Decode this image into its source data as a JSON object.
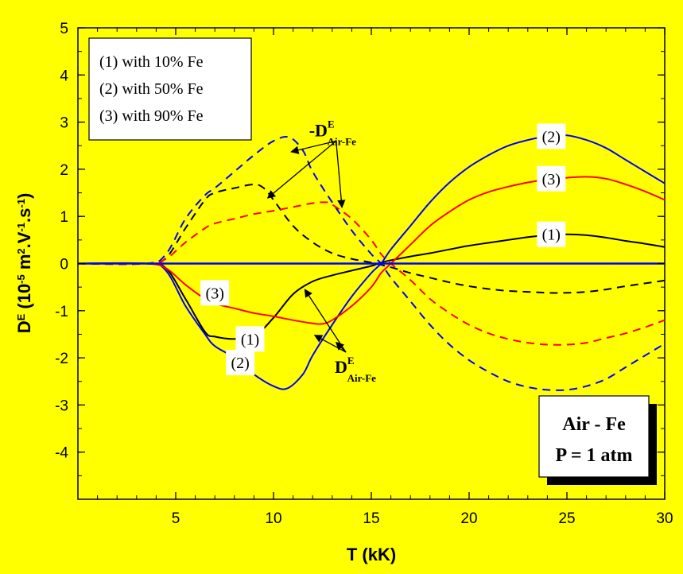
{
  "chart_data": {
    "type": "line",
    "xlabel": "T (kK)",
    "ylabel": {
      "main": "D",
      "sup": "E",
      "unit_open": " (10",
      "unit_exp": "-5",
      "unit_m": " m",
      "unit_m_exp": "2",
      "unit_v": ".V",
      "unit_v_exp": "-1",
      "unit_s": ".s",
      "unit_s_exp": "-1",
      "unit_close": ")"
    },
    "xlim": [
      0,
      30
    ],
    "ylim": [
      -5,
      5
    ],
    "xticks": [
      5,
      10,
      15,
      20,
      25,
      30
    ],
    "yticks": [
      -4,
      -3,
      -2,
      -1,
      0,
      1,
      2,
      3,
      4,
      5
    ],
    "legend": [
      "(1) with 10% Fe",
      "(2) with 50% Fe",
      "(3) with 90% Fe"
    ],
    "legend_position": "top-left",
    "colors": {
      "c1": "#000000",
      "c2": "#0000ff",
      "c3": "#ff0000",
      "background": "#ffff00"
    },
    "series": [
      {
        "curve": "(1)",
        "style": "solid",
        "color": "#000000",
        "x": [
          0,
          3.5,
          4.5,
          5.5,
          6.5,
          7,
          8,
          9,
          10,
          11,
          12,
          13,
          14,
          15,
          15.5,
          16,
          17,
          18,
          19,
          20,
          21,
          22,
          23,
          24,
          25,
          26,
          27,
          28,
          29,
          30
        ],
        "y": [
          0,
          0,
          -0.1,
          -0.75,
          -1.45,
          -1.55,
          -1.6,
          -1.55,
          -1.15,
          -0.65,
          -0.38,
          -0.25,
          -0.15,
          -0.05,
          0.02,
          0.07,
          0.15,
          0.22,
          0.3,
          0.38,
          0.44,
          0.5,
          0.56,
          0.6,
          0.62,
          0.6,
          0.55,
          0.48,
          0.42,
          0.35
        ]
      },
      {
        "curve": "(2)",
        "style": "solid",
        "color": "#0000ff",
        "x": [
          0,
          3.5,
          4.5,
          5.5,
          6.5,
          7,
          8,
          9,
          10,
          10.7,
          11.5,
          12,
          13,
          14,
          15,
          15.5,
          16,
          17,
          18,
          19,
          20,
          21,
          22,
          23,
          24,
          25,
          26,
          27,
          28,
          29,
          30
        ],
        "y": [
          0,
          0,
          -0.15,
          -0.9,
          -1.5,
          -1.75,
          -2.0,
          -2.35,
          -2.6,
          -2.65,
          -2.35,
          -1.95,
          -1.3,
          -0.7,
          -0.2,
          0,
          0.3,
          0.8,
          1.3,
          1.72,
          2.05,
          2.3,
          2.5,
          2.62,
          2.7,
          2.72,
          2.62,
          2.45,
          2.2,
          1.95,
          1.7
        ]
      },
      {
        "curve": "(3)",
        "style": "solid",
        "color": "#ff0000",
        "x": [
          0,
          3.5,
          4.5,
          5.5,
          6.5,
          7,
          8,
          9,
          10,
          11,
          12,
          12.5,
          13,
          14,
          15,
          15.5,
          16,
          17,
          18,
          19,
          20,
          21,
          22,
          23,
          24,
          25,
          26,
          27,
          28,
          29,
          30
        ],
        "y": [
          0,
          0,
          -0.1,
          -0.45,
          -0.75,
          -0.85,
          -0.95,
          -1.05,
          -1.12,
          -1.2,
          -1.27,
          -1.28,
          -1.2,
          -0.9,
          -0.5,
          -0.2,
          0,
          0.4,
          0.8,
          1.1,
          1.35,
          1.52,
          1.63,
          1.72,
          1.78,
          1.82,
          1.84,
          1.8,
          1.68,
          1.53,
          1.35
        ]
      },
      {
        "curve": "(1)",
        "style": "dashed",
        "color": "#000000",
        "x": [
          0,
          3.5,
          4.5,
          5.5,
          6.5,
          7,
          8,
          9,
          9.5,
          10,
          11,
          12,
          13,
          14,
          15,
          16,
          17,
          18,
          19,
          20,
          21,
          22,
          23,
          24,
          25,
          26,
          27,
          28,
          29,
          30
        ],
        "y": [
          0,
          0,
          0.12,
          0.75,
          1.35,
          1.5,
          1.6,
          1.68,
          1.6,
          1.35,
          0.8,
          0.45,
          0.22,
          0.1,
          0.02,
          -0.08,
          -0.2,
          -0.3,
          -0.4,
          -0.48,
          -0.54,
          -0.58,
          -0.6,
          -0.62,
          -0.62,
          -0.6,
          -0.55,
          -0.48,
          -0.42,
          -0.36
        ]
      },
      {
        "curve": "(2)",
        "style": "dashed",
        "color": "#0000ff",
        "x": [
          0,
          3.5,
          4.5,
          5.5,
          6.5,
          7,
          8,
          9,
          10,
          10.8,
          11.5,
          12,
          13,
          14,
          15,
          15.5,
          16,
          17,
          18,
          19,
          20,
          21,
          22,
          23,
          24,
          25,
          26,
          27,
          28,
          29,
          30
        ],
        "y": [
          0,
          0,
          0.2,
          0.95,
          1.45,
          1.6,
          1.95,
          2.3,
          2.6,
          2.68,
          2.4,
          1.95,
          1.3,
          0.7,
          0.2,
          0,
          -0.3,
          -0.8,
          -1.3,
          -1.72,
          -2.05,
          -2.3,
          -2.5,
          -2.62,
          -2.68,
          -2.68,
          -2.6,
          -2.45,
          -2.2,
          -1.95,
          -1.7
        ]
      },
      {
        "curve": "(3)",
        "style": "dashed",
        "color": "#ff0000",
        "x": [
          0,
          3.5,
          4.5,
          5.5,
          6.5,
          7,
          8,
          9,
          10,
          11,
          12,
          12.7,
          13,
          14,
          15,
          15.5,
          16,
          17,
          18,
          19,
          20,
          21,
          22,
          23,
          24,
          25,
          26,
          27,
          28,
          29,
          30
        ],
        "y": [
          0,
          0,
          0.1,
          0.45,
          0.75,
          0.85,
          0.95,
          1.05,
          1.12,
          1.2,
          1.28,
          1.3,
          1.25,
          0.95,
          0.5,
          0.2,
          0,
          -0.35,
          -0.75,
          -1.05,
          -1.3,
          -1.48,
          -1.6,
          -1.68,
          -1.72,
          -1.72,
          -1.68,
          -1.58,
          -1.48,
          -1.35,
          -1.2
        ]
      },
      {
        "curve": "zero",
        "style": "solid",
        "color": "#0000ff",
        "x": [
          0,
          30
        ],
        "y": [
          0,
          0
        ]
      }
    ],
    "curve_labels": [
      {
        "text": "(2)",
        "x": 24.2,
        "y": 2.7
      },
      {
        "text": "(3)",
        "x": 24.2,
        "y": 1.8
      },
      {
        "text": "(1)",
        "x": 24.2,
        "y": 0.62
      },
      {
        "text": "(3)",
        "x": 7.0,
        "y": -0.62
      },
      {
        "text": "(1)",
        "x": 8.8,
        "y": -1.6
      },
      {
        "text": "(2)",
        "x": 8.3,
        "y": -2.1
      }
    ],
    "annotations": [
      {
        "id": "upper",
        "prefix": "-",
        "main": "D",
        "sup": "E",
        "sub": "Air-Fe",
        "x": 13.2,
        "y": 2.6,
        "arrows_to": [
          [
            10.9,
            2.37
          ],
          [
            9.7,
            1.39
          ],
          [
            13.5,
            1.19
          ]
        ]
      },
      {
        "id": "lower",
        "prefix": "",
        "main": "D",
        "sup": "E",
        "sub": "Air-Fe",
        "x": 13.7,
        "y": -1.88,
        "arrows_to": [
          [
            11.6,
            -0.55
          ],
          [
            12.1,
            -1.52
          ],
          [
            13.2,
            -1.67
          ]
        ]
      }
    ],
    "info_box": {
      "line1": "Air - Fe",
      "line2": "P = 1 atm"
    }
  }
}
